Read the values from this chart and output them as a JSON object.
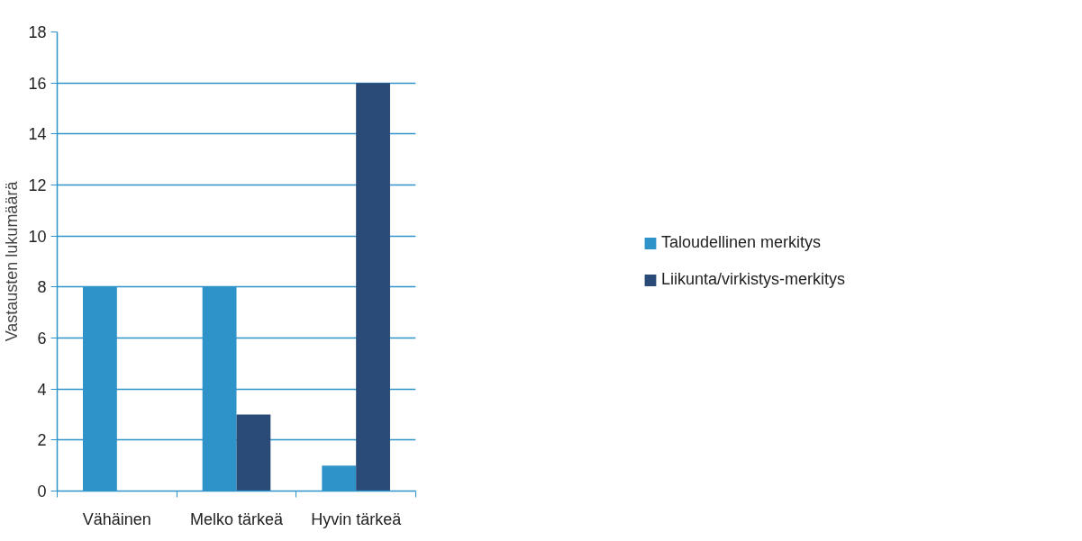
{
  "chart_data": {
    "type": "bar",
    "ylabel": "Vastausten lukumäärä",
    "categories": [
      "Vähäinen",
      "Melko tärkeä",
      "Hyvin tärkeä"
    ],
    "series": [
      {
        "name": "Taloudellinen merkitys",
        "color": "#2e93c9",
        "values": [
          8,
          8,
          1
        ]
      },
      {
        "name": "Liikunta/virkistys-merkitys",
        "color": "#2a4a78",
        "values": [
          0,
          3,
          16
        ]
      }
    ],
    "ylim": [
      0,
      18
    ],
    "yticks": [
      0,
      2,
      4,
      6,
      8,
      10,
      12,
      14,
      16,
      18
    ],
    "grid": "y",
    "legend": "right"
  }
}
